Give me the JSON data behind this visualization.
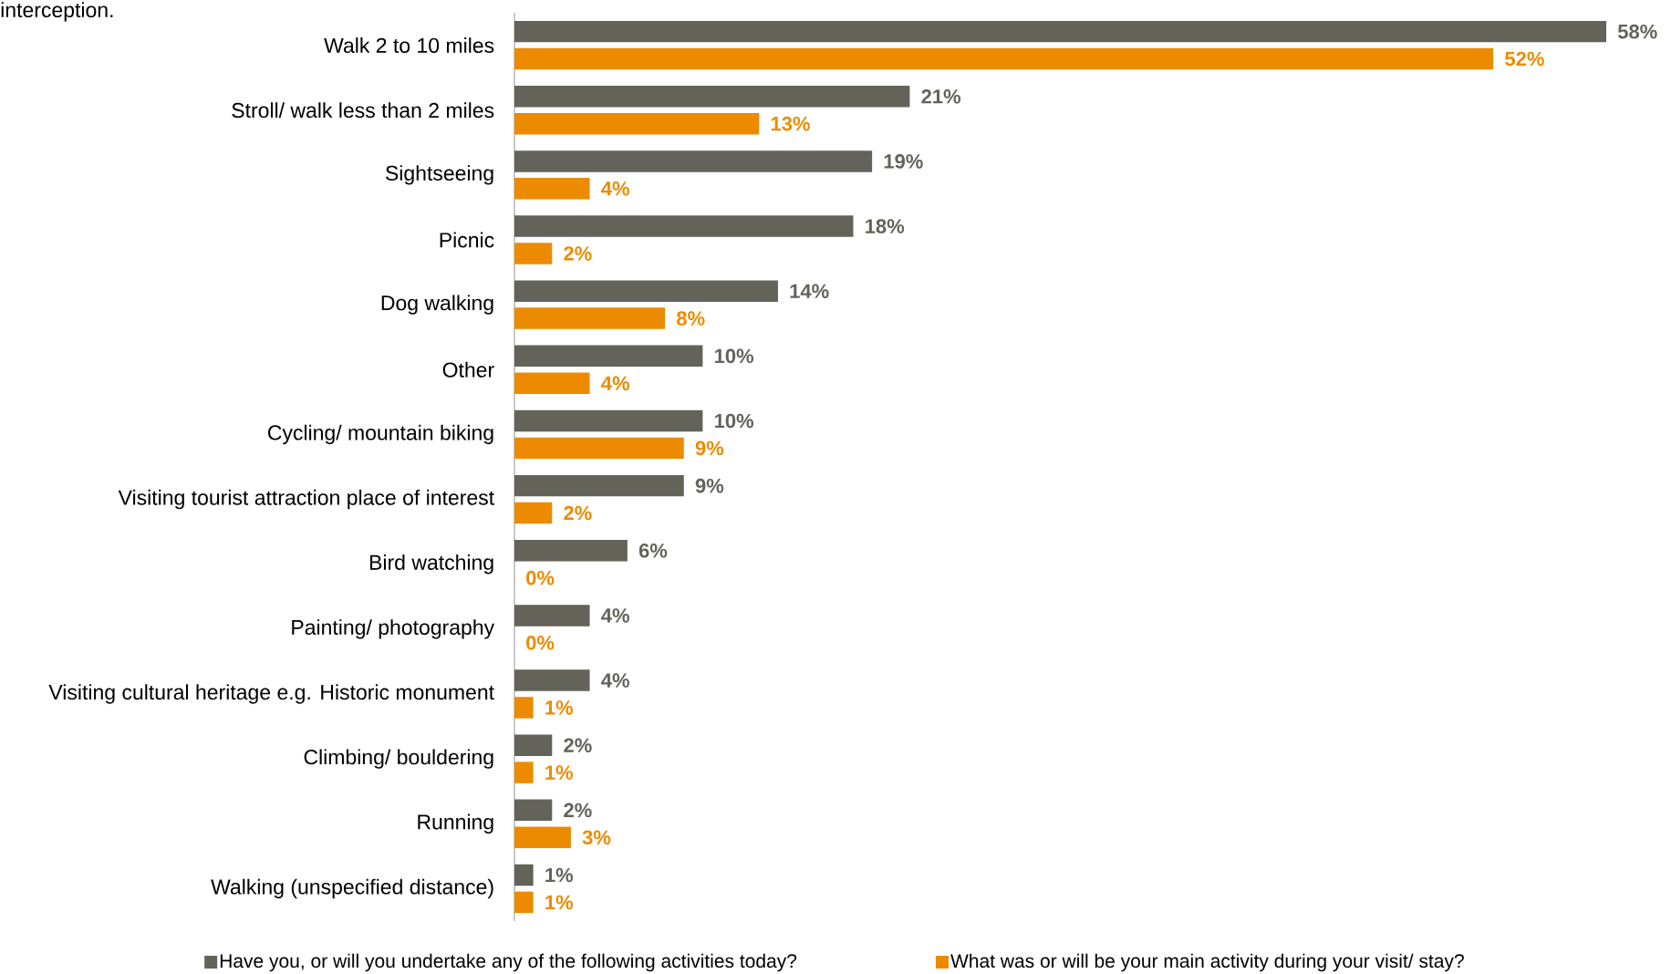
{
  "chart_data": {
    "type": "bar",
    "orientation": "horizontal",
    "legend": "bottom",
    "annotations": [
      "interception."
    ],
    "categories": [
      "Walk 2 to 10 miles",
      "Stroll/ walk less than 2 miles",
      "Sightseeing",
      "Picnic",
      "Dog walking",
      "Other",
      "Cycling/ mountain biking",
      "Visiting tourist attraction place of interest",
      "Bird watching",
      "Painting/ photography",
      "Visiting cultural heritage e.g. Historic monument",
      "Climbing/ bouldering",
      "Running",
      "Walking (unspecified distance)"
    ],
    "series": [
      {
        "name": "Have you, or will you undertake any of the following activities today?",
        "color": "#636359",
        "values": [
          58,
          21,
          19,
          18,
          14,
          10,
          10,
          9,
          6,
          4,
          4,
          2,
          2,
          1
        ],
        "value_labels": [
          "58%",
          "21%",
          "19%",
          "18%",
          "14%",
          "10%",
          "10%",
          "9%",
          "6%",
          "4%",
          "4%",
          "2%",
          "2%",
          "1%"
        ]
      },
      {
        "name": "What was or will be your main activity during your visit/ stay?",
        "color": "#ed8b00",
        "values": [
          52,
          13,
          4,
          2,
          8,
          4,
          9,
          2,
          0,
          0,
          1,
          1,
          3,
          1
        ],
        "value_labels": [
          "52%",
          "13%",
          "4%",
          "2%",
          "8%",
          "4%",
          "9%",
          "2%",
          "0%",
          "0%",
          "1%",
          "1%",
          "3%",
          "1%"
        ]
      }
    ]
  }
}
